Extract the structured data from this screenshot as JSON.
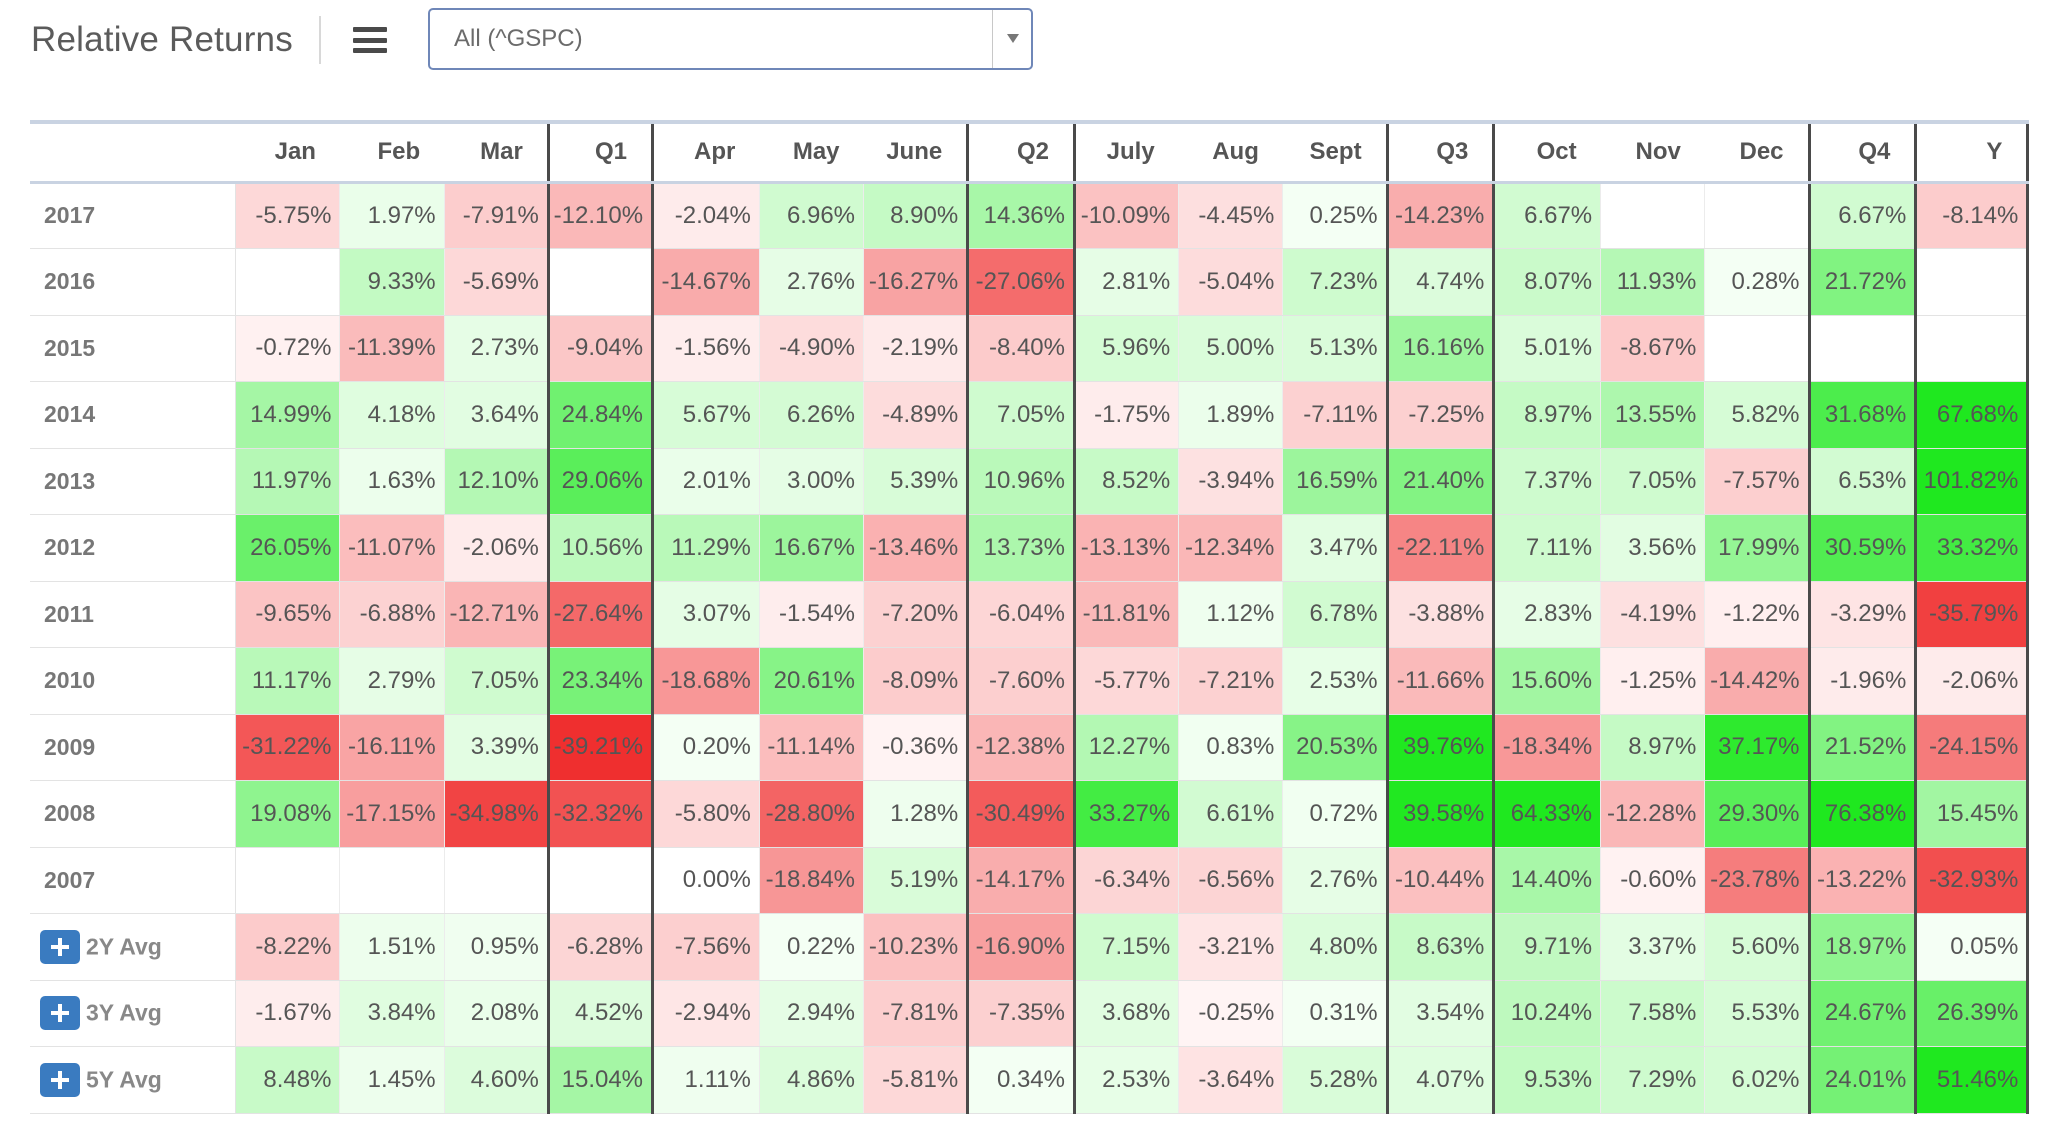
{
  "header": {
    "title": "Relative Returns",
    "menu_icon": "hamburger-menu-icon"
  },
  "select": {
    "value": "All (^GSPC)",
    "arrow_icon": "dropdown-arrow-icon"
  },
  "columns": [
    "",
    "Jan",
    "Feb",
    "Mar",
    "Q1",
    "Apr",
    "May",
    "June",
    "Q2",
    "July",
    "Aug",
    "Sept",
    "Q3",
    "Oct",
    "Nov",
    "Dec",
    "Q4",
    "Y"
  ],
  "rows": [
    {
      "label": "2017",
      "cells": [
        "-5.75%",
        "1.97%",
        "-7.91%",
        "-12.10%",
        "-2.04%",
        "6.96%",
        "8.90%",
        "14.36%",
        "-10.09%",
        "-4.45%",
        "0.25%",
        "-14.23%",
        "6.67%",
        "",
        "",
        "6.67%",
        "-8.14%"
      ]
    },
    {
      "label": "2016",
      "cells": [
        "",
        "9.33%",
        "-5.69%",
        "",
        "-14.67%",
        "2.76%",
        "-16.27%",
        "-27.06%",
        "2.81%",
        "-5.04%",
        "7.23%",
        "4.74%",
        "8.07%",
        "11.93%",
        "0.28%",
        "21.72%",
        ""
      ]
    },
    {
      "label": "2015",
      "cells": [
        "-0.72%",
        "-11.39%",
        "2.73%",
        "-9.04%",
        "-1.56%",
        "-4.90%",
        "-2.19%",
        "-8.40%",
        "5.96%",
        "5.00%",
        "5.13%",
        "16.16%",
        "5.01%",
        "-8.67%",
        "",
        "",
        ""
      ]
    },
    {
      "label": "2014",
      "cells": [
        "14.99%",
        "4.18%",
        "3.64%",
        "24.84%",
        "5.67%",
        "6.26%",
        "-4.89%",
        "7.05%",
        "-1.75%",
        "1.89%",
        "-7.11%",
        "-7.25%",
        "8.97%",
        "13.55%",
        "5.82%",
        "31.68%",
        "67.68%"
      ]
    },
    {
      "label": "2013",
      "cells": [
        "11.97%",
        "1.63%",
        "12.10%",
        "29.06%",
        "2.01%",
        "3.00%",
        "5.39%",
        "10.96%",
        "8.52%",
        "-3.94%",
        "16.59%",
        "21.40%",
        "7.37%",
        "7.05%",
        "-7.57%",
        "6.53%",
        "101.82%"
      ]
    },
    {
      "label": "2012",
      "cells": [
        "26.05%",
        "-11.07%",
        "-2.06%",
        "10.56%",
        "11.29%",
        "16.67%",
        "-13.46%",
        "13.73%",
        "-13.13%",
        "-12.34%",
        "3.47%",
        "-22.11%",
        "7.11%",
        "3.56%",
        "17.99%",
        "30.59%",
        "33.32%"
      ]
    },
    {
      "label": "2011",
      "cells": [
        "-9.65%",
        "-6.88%",
        "-12.71%",
        "-27.64%",
        "3.07%",
        "-1.54%",
        "-7.20%",
        "-6.04%",
        "-11.81%",
        "1.12%",
        "6.78%",
        "-3.88%",
        "2.83%",
        "-4.19%",
        "-1.22%",
        "-3.29%",
        "-35.79%"
      ]
    },
    {
      "label": "2010",
      "cells": [
        "11.17%",
        "2.79%",
        "7.05%",
        "23.34%",
        "-18.68%",
        "20.61%",
        "-8.09%",
        "-7.60%",
        "-5.77%",
        "-7.21%",
        "2.53%",
        "-11.66%",
        "15.60%",
        "-1.25%",
        "-14.42%",
        "-1.96%",
        "-2.06%"
      ]
    },
    {
      "label": "2009",
      "cells": [
        "-31.22%",
        "-16.11%",
        "3.39%",
        "-39.21%",
        "0.20%",
        "-11.14%",
        "-0.36%",
        "-12.38%",
        "12.27%",
        "0.83%",
        "20.53%",
        "39.76%",
        "-18.34%",
        "8.97%",
        "37.17%",
        "21.52%",
        "-24.15%"
      ]
    },
    {
      "label": "2008",
      "cells": [
        "19.08%",
        "-17.15%",
        "-34.98%",
        "-32.32%",
        "-5.80%",
        "-28.80%",
        "1.28%",
        "-30.49%",
        "33.27%",
        "6.61%",
        "0.72%",
        "39.58%",
        "64.33%",
        "-12.28%",
        "29.30%",
        "76.38%",
        "15.45%"
      ]
    },
    {
      "label": "2007",
      "cells": [
        "",
        "",
        "",
        "",
        "0.00%",
        "-18.84%",
        "5.19%",
        "-14.17%",
        "-6.34%",
        "-6.56%",
        "2.76%",
        "-10.44%",
        "14.40%",
        "-0.60%",
        "-23.78%",
        "-13.22%",
        "-32.93%"
      ]
    },
    {
      "label": "2Y Avg",
      "avg": true,
      "cells": [
        "-8.22%",
        "1.51%",
        "0.95%",
        "-6.28%",
        "-7.56%",
        "0.22%",
        "-10.23%",
        "-16.90%",
        "7.15%",
        "-3.21%",
        "4.80%",
        "8.63%",
        "9.71%",
        "3.37%",
        "5.60%",
        "18.97%",
        "0.05%"
      ]
    },
    {
      "label": "3Y Avg",
      "avg": true,
      "cells": [
        "-1.67%",
        "3.84%",
        "2.08%",
        "4.52%",
        "-2.94%",
        "2.94%",
        "-7.81%",
        "-7.35%",
        "3.68%",
        "-0.25%",
        "0.31%",
        "3.54%",
        "10.24%",
        "7.58%",
        "5.53%",
        "24.67%",
        "26.39%"
      ]
    },
    {
      "label": "5Y Avg",
      "avg": true,
      "cells": [
        "8.48%",
        "1.45%",
        "4.60%",
        "15.04%",
        "1.11%",
        "4.86%",
        "-5.81%",
        "0.34%",
        "2.53%",
        "-3.64%",
        "5.28%",
        "4.07%",
        "9.53%",
        "7.29%",
        "6.02%",
        "24.01%",
        "51.46%"
      ]
    }
  ],
  "colors": {
    "positive_max": "#1fe81f",
    "negative_max": "#ef2b2b",
    "neutral": "#ffffff",
    "grid_header_border": "#c9d3e2",
    "quarter_border": "#4a4a4a",
    "button_blue": "#3a7bc0"
  }
}
